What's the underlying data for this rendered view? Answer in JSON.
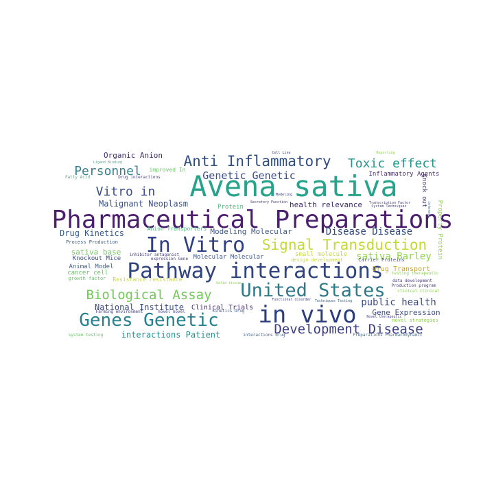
{
  "word_cloud": {
    "words": [
      {
        "text": "Avena sativa",
        "color": "#26a38a"
      },
      {
        "text": "Pharmaceutical Preparations",
        "color": "#4b1e6e"
      },
      {
        "text": "Pathway interactions",
        "color": "#30447f"
      },
      {
        "text": "In Vitro",
        "color": "#2f3f86"
      },
      {
        "text": "in vivo",
        "color": "#2b3d7e"
      },
      {
        "text": "United States",
        "color": "#2e7a8c"
      },
      {
        "text": "Genes Genetic",
        "color": "#26818e"
      },
      {
        "text": "Anti Inflammatory",
        "color": "#2f4d82"
      },
      {
        "text": "Signal Transduction",
        "color": "#c2d93a"
      },
      {
        "text": "Biological Assay",
        "color": "#73c85a"
      },
      {
        "text": "Development Disease",
        "color": "#3d3f82"
      },
      {
        "text": "Toxic effect",
        "color": "#22958b"
      },
      {
        "text": "Genetic Genetic",
        "color": "#3a4d8a"
      },
      {
        "text": "Personnel",
        "color": "#3a7f8f"
      },
      {
        "text": "Vitro in",
        "color": "#3b4f86"
      },
      {
        "text": "Malignant Neoplasm",
        "color": "#3a4f85"
      },
      {
        "text": "Disease Disease",
        "color": "#2f4c7c"
      },
      {
        "text": "public health",
        "color": "#3d4b82"
      },
      {
        "text": "sativa Barley",
        "color": "#8ed64a"
      },
      {
        "text": "Organic Anion",
        "color": "#3f2e6e"
      },
      {
        "text": "health relevance",
        "color": "#3b2b6b"
      },
      {
        "text": "Modeling Molecular",
        "color": "#3d5a88"
      },
      {
        "text": "Drug Kinetics",
        "color": "#355c8b"
      },
      {
        "text": "Inflammatory Agents",
        "color": "#4a2a6e"
      },
      {
        "text": "Gene Expression",
        "color": "#3e4f85"
      },
      {
        "text": "interactions Patient",
        "color": "#2c8e8a"
      },
      {
        "text": "National Institute",
        "color": "#3a4b82"
      },
      {
        "text": "Clinical Trials",
        "color": "#4a2f72"
      },
      {
        "text": "sativa base",
        "color": "#74c75a"
      },
      {
        "text": "Knockout Mice",
        "color": "#3c4a84"
      },
      {
        "text": "Molecular Molecular",
        "color": "#3a548a"
      },
      {
        "text": "Anion Transporters",
        "color": "#4ab57a"
      },
      {
        "text": "Drug Transport",
        "color": "#caa52a"
      },
      {
        "text": "Animal Model",
        "color": "#3f5f8a"
      },
      {
        "text": "cancer cell",
        "color": "#64c265"
      },
      {
        "text": "Protein",
        "color": "#4cb87b"
      },
      {
        "text": "improved In",
        "color": "#6cc469"
      },
      {
        "text": "Knock out",
        "color": "#4a3a78"
      },
      {
        "text": "Property Protein",
        "color": "#8ad04a"
      },
      {
        "text": "small molecule",
        "color": "#c7d63a"
      },
      {
        "text": "design development",
        "color": "#c7d63a"
      },
      {
        "text": "Carrier Proteins",
        "color": "#4b4d86"
      },
      {
        "text": "Process Production",
        "color": "#3f5f8a"
      },
      {
        "text": "growth factor",
        "color": "#6bc46a"
      },
      {
        "text": "Resistance resistance",
        "color": "#c7d63a"
      },
      {
        "text": "expression Gene",
        "color": "#4a3a78"
      },
      {
        "text": "inhibitor antagonist",
        "color": "#3f3f80"
      },
      {
        "text": "testing therapeutic",
        "color": "#8ad04a"
      },
      {
        "text": "data development",
        "color": "#4a3a78"
      },
      {
        "text": "Production program",
        "color": "#4a3a78"
      },
      {
        "text": "clinical clinical",
        "color": "#8ad04a"
      },
      {
        "text": "novel strategies",
        "color": "#8ad04a"
      },
      {
        "text": "Kinetics Drug",
        "color": "#3f5f8a"
      },
      {
        "text": "Farming environment",
        "color": "#3f3f80"
      },
      {
        "text": "novel novel",
        "color": "#3f3f80"
      },
      {
        "text": "system testing",
        "color": "#64c265"
      },
      {
        "text": "interactions drug",
        "color": "#3f5f8a"
      },
      {
        "text": "Preparations Pharmacodynamic",
        "color": "#4a6f8a"
      },
      {
        "text": "Fatty Acid",
        "color": "#5e9e8e"
      },
      {
        "text": "Drug interactions",
        "color": "#3f3f80"
      },
      {
        "text": "Reporting",
        "color": "#8ad04a"
      },
      {
        "text": "Cell Line",
        "color": "#3f3f80"
      },
      {
        "text": "Ligand Binding",
        "color": "#5e9e8e"
      },
      {
        "text": "interest",
        "color": "#4a6f8a"
      },
      {
        "text": "Transcription Factor",
        "color": "#4a3a78"
      },
      {
        "text": "Secretory Function",
        "color": "#4a3a78"
      },
      {
        "text": "Modeling",
        "color": "#3f3f80"
      },
      {
        "text": "Techniques Testing",
        "color": "#3f5f8a"
      },
      {
        "text": "Functional disorder",
        "color": "#3f3f80"
      },
      {
        "text": "Solid tissue",
        "color": "#8ad04a"
      },
      {
        "text": "Novel therapeutic",
        "color": "#3f3f80"
      },
      {
        "text": "System Techniques",
        "color": "#3f3f80"
      }
    ]
  }
}
